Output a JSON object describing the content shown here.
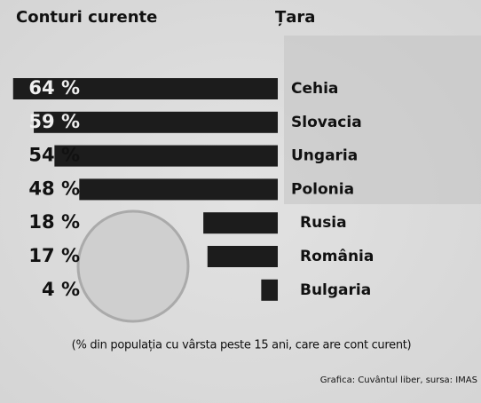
{
  "chart_data": {
    "type": "bar",
    "orientation": "horizontal",
    "title": "Conturi curente",
    "category_header": "Țara",
    "categories": [
      "Cehia",
      "Slovacia",
      "Ungaria",
      "Polonia",
      "Rusia",
      "România",
      "Bulgaria"
    ],
    "values": [
      64,
      59,
      54,
      48,
      18,
      17,
      4
    ],
    "value_labels": [
      "64 %",
      "59 %",
      "54 %",
      "48 %",
      "18 %",
      "17 %",
      "4 %"
    ],
    "color": "#1c1c1c",
    "note": "(% din populația cu vârsta peste 15 ani, care are cont curent)",
    "source": "Grafica: Cuvântul liber, sursa: IMAS"
  }
}
